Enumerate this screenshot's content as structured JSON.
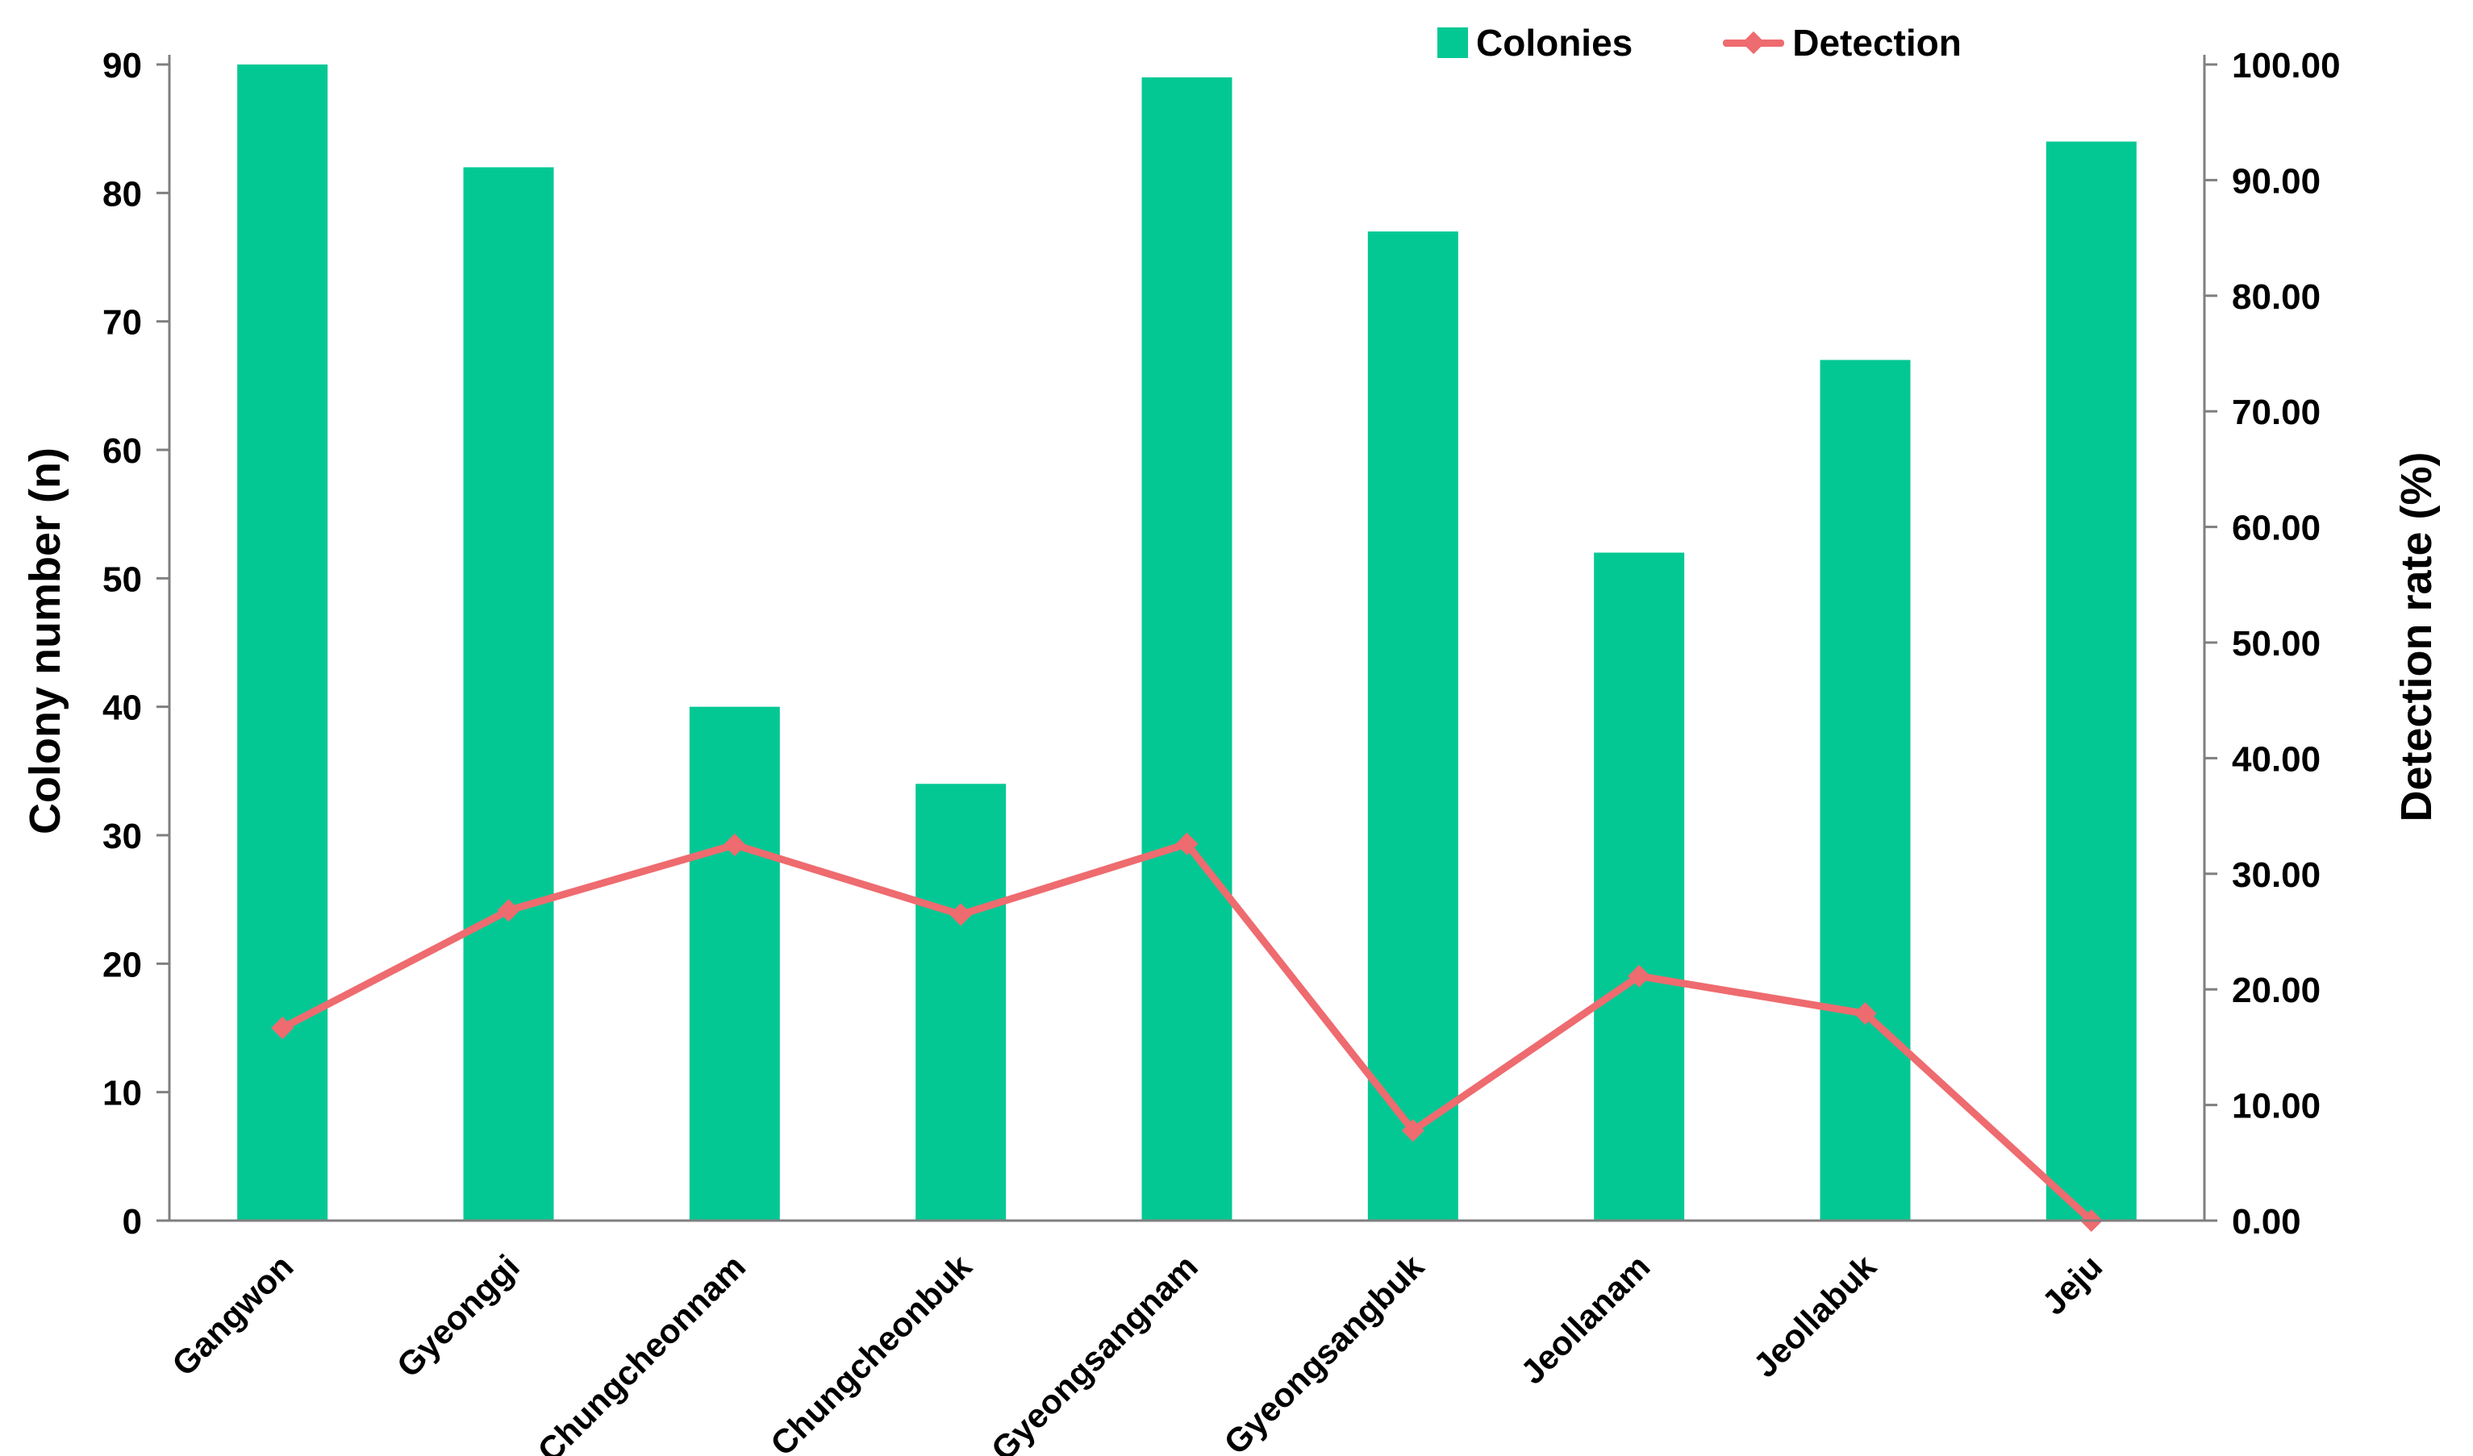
{
  "chart_data": {
    "type": "combo-bar-line",
    "title": "",
    "categories": [
      "Gangwon",
      "Gyeonggi",
      "Chungcheonnam",
      "Chungcheonbuk",
      "Gyeongsangnam",
      "Gyeongsangbuk",
      "Jeollanam",
      "Jeollabuk",
      "Jeju"
    ],
    "series": [
      {
        "name": "Colonies",
        "type": "bar",
        "axis": "left",
        "color": "#04C894",
        "values": [
          90,
          82,
          40,
          34,
          89,
          77,
          52,
          67,
          84
        ]
      },
      {
        "name": "Detection",
        "type": "line",
        "axis": "right",
        "color": "#EE6B6F",
        "marker": "diamond",
        "values": [
          16.67,
          26.83,
          32.5,
          26.47,
          32.58,
          7.79,
          21.15,
          17.91,
          0.0
        ]
      }
    ],
    "axes": {
      "left": {
        "title": "Colony number (n)",
        "min": 0,
        "max": 90,
        "step": 10,
        "tick_labels": [
          "0",
          "10",
          "20",
          "30",
          "40",
          "50",
          "60",
          "70",
          "80",
          "90"
        ]
      },
      "right": {
        "title": "Detection rate (%)",
        "min": 0,
        "max": 100,
        "step": 10,
        "tick_labels": [
          "0.00",
          "10.00",
          "20.00",
          "30.00",
          "40.00",
          "50.00",
          "60.00",
          "70.00",
          "80.00",
          "90.00",
          "100.00"
        ]
      },
      "x": {
        "label_rotation_deg": -45
      }
    },
    "legend": {
      "position": "top",
      "items": [
        {
          "label": "Colonies",
          "swatch": "square"
        },
        {
          "label": "Detection",
          "swatch": "line-diamond"
        }
      ]
    },
    "grid": false,
    "background": "#FFFFFF",
    "axis_line_color": "#7F7F7F",
    "text_color": "#000000"
  }
}
